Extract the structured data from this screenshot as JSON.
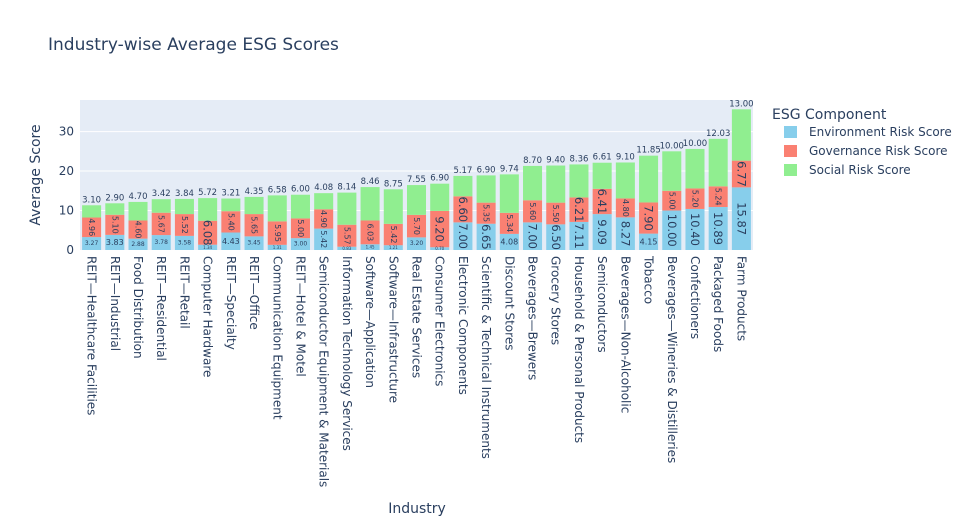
{
  "chart_data": {
    "type": "bar",
    "barmode": "stack",
    "title": "Industry-wise Average ESG Scores",
    "xlabel": "Industry",
    "ylabel": "Average Score",
    "ylim": [
      0,
      38
    ],
    "yticks": [
      0,
      10,
      20,
      30
    ],
    "grid": true,
    "legend_title": "ESG Component",
    "legend_position": "right",
    "categories": [
      "REIT—Healthcare Facilities",
      "REIT—Industrial",
      "Food Distribution",
      "REIT—Residential",
      "REIT—Retail",
      "Computer Hardware",
      "REIT—Specialty",
      "REIT—Office",
      "Communication Equipment",
      "REIT—Hotel & Motel",
      "Semiconductor Equipment & Materials",
      "Information Technology Services",
      "Software—Application",
      "Software—Infrastructure",
      "Real Estate Services",
      "Consumer Electronics",
      "Electronic Components",
      "Scientific & Technical Instruments",
      "Discount Stores",
      "Beverages—Brewers",
      "Grocery Stores",
      "Household & Personal Products",
      "Semiconductors",
      "Beverages—Non-Alcoholic",
      "Tobacco",
      "Beverages—Wineries & Distilleries",
      "Confectioners",
      "Packaged Foods",
      "Farm Products"
    ],
    "series": [
      {
        "name": "Environment Risk Score",
        "color": "#87ceeb",
        "values": [
          3.27,
          3.83,
          2.88,
          3.78,
          3.58,
          1.34,
          4.43,
          3.45,
          1.31,
          3.0,
          5.42,
          0.83,
          1.45,
          1.21,
          3.2,
          0.7,
          7.0,
          6.65,
          4.08,
          7.0,
          6.5,
          7.11,
          9.09,
          8.27,
          4.15,
          10.0,
          10.4,
          10.89,
          15.87
        ],
        "labels": [
          "3.27",
          "3.83",
          "2.88",
          "3.78",
          "3.58",
          "1.34",
          "4.43",
          "3.45",
          "1.31",
          "3.00",
          "5.42",
          "0.83",
          "1.45",
          "1.21",
          "3.20",
          "0.70",
          "7.00",
          "6.65",
          "4.08",
          "7.00",
          "6.50",
          "7.11",
          "9.09",
          "8.27",
          "4.15",
          "10.00",
          "10.40",
          "10.89",
          "15.87"
        ]
      },
      {
        "name": "Governance Risk Score",
        "color": "#fa8072",
        "values": [
          4.96,
          5.1,
          4.6,
          5.67,
          5.52,
          6.08,
          5.4,
          5.65,
          5.95,
          5.0,
          4.9,
          5.57,
          6.03,
          5.42,
          5.7,
          9.2,
          6.6,
          5.35,
          5.34,
          5.6,
          5.5,
          6.21,
          6.41,
          4.8,
          7.9,
          5.0,
          5.2,
          5.24,
          6.77
        ],
        "labels": [
          "4.96",
          "5.10",
          "4.60",
          "5.67",
          "5.52",
          "6.08",
          "5.40",
          "5.65",
          "5.95",
          "5.00",
          "4.90",
          "5.57",
          "6.03",
          "5.42",
          "5.70",
          "9.20",
          "6.60",
          "5.35",
          "5.34",
          "5.60",
          "5.50",
          "6.21",
          "6.41",
          "4.80",
          "7.90",
          "5.00",
          "5.20",
          "5.24",
          "6.77"
        ]
      },
      {
        "name": "Social Risk Score",
        "color": "#90ee90",
        "values": [
          3.1,
          2.9,
          4.7,
          3.42,
          3.84,
          5.72,
          3.21,
          4.35,
          6.58,
          6.0,
          4.08,
          8.14,
          8.46,
          8.75,
          7.55,
          6.9,
          5.17,
          6.9,
          9.74,
          8.7,
          9.4,
          8.36,
          6.61,
          9.1,
          11.85,
          10.0,
          10.0,
          12.03,
          13.0
        ],
        "labels": [
          "3.10",
          "2.90",
          "4.70",
          "3.42",
          "3.84",
          "5.72",
          "3.21",
          "4.35",
          "6.58",
          "6.00",
          "4.08",
          "8.14",
          "8.46",
          "8.75",
          "7.55",
          "6.90",
          "5.17",
          "6.90",
          "9.74",
          "8.70",
          "9.40",
          "8.36",
          "6.61",
          "9.10",
          "11.85",
          "10.00",
          "10.00",
          "12.03",
          "13.00"
        ]
      }
    ]
  }
}
